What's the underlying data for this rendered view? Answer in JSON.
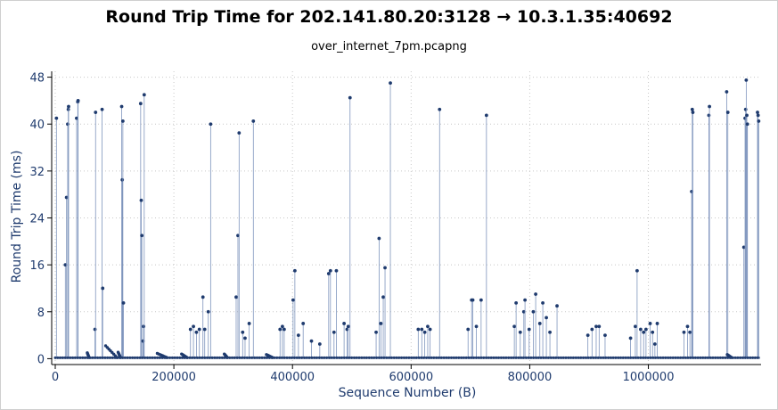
{
  "chart_data": {
    "type": "scatter",
    "title": "Round Trip Time for 202.141.80.20:3128 → 10.3.1.35:40692",
    "subtitle": "over_internet_7pm.pcapng",
    "xlabel": "Sequence Number (B)",
    "ylabel": "Round Trip Time (ms)",
    "xlim": [
      -6000,
      1190000
    ],
    "ylim": [
      -1,
      49
    ],
    "xticks": [
      0,
      200000,
      400000,
      600000,
      800000,
      1000000
    ],
    "yticks": [
      0,
      8,
      16,
      24,
      32,
      40,
      48
    ],
    "grid": true,
    "marker_color": "#1f3b6e",
    "line_color": "#7f95bd",
    "spikes": [
      [
        2000,
        41
      ],
      [
        17000,
        16
      ],
      [
        19000,
        27.5
      ],
      [
        21000,
        40
      ],
      [
        22000,
        42.5
      ],
      [
        22500,
        43
      ],
      [
        36000,
        41
      ],
      [
        38000,
        43.8
      ],
      [
        38500,
        44
      ],
      [
        67000,
        5
      ],
      [
        68000,
        42
      ],
      [
        79000,
        42.5
      ],
      [
        80000,
        12
      ],
      [
        112000,
        43
      ],
      [
        113000,
        30.5
      ],
      [
        114000,
        40.5
      ],
      [
        115000,
        9.5
      ],
      [
        144000,
        43.5
      ],
      [
        145000,
        27
      ],
      [
        146000,
        21
      ],
      [
        148000,
        3
      ],
      [
        149000,
        5.5
      ],
      [
        150000,
        45
      ],
      [
        228000,
        5
      ],
      [
        233000,
        5.5
      ],
      [
        238000,
        4.5
      ],
      [
        243000,
        5
      ],
      [
        249000,
        10.5
      ],
      [
        252000,
        5
      ],
      [
        258000,
        8
      ],
      [
        262000,
        40
      ],
      [
        305000,
        10.5
      ],
      [
        308000,
        21
      ],
      [
        310000,
        38.5
      ],
      [
        316000,
        4.5
      ],
      [
        320000,
        3.5
      ],
      [
        327000,
        6
      ],
      [
        334000,
        40.5
      ],
      [
        379000,
        5
      ],
      [
        383000,
        5.5
      ],
      [
        386000,
        5
      ],
      [
        401000,
        10
      ],
      [
        404000,
        15
      ],
      [
        410000,
        4
      ],
      [
        418000,
        6
      ],
      [
        432000,
        3
      ],
      [
        446000,
        2.5
      ],
      [
        461000,
        14.5
      ],
      [
        464000,
        15
      ],
      [
        470000,
        4.5
      ],
      [
        474000,
        15
      ],
      [
        487000,
        6
      ],
      [
        492000,
        5
      ],
      [
        494000,
        5.5
      ],
      [
        497000,
        44.5
      ],
      [
        541000,
        4.5
      ],
      [
        546000,
        20.5
      ],
      [
        549000,
        6
      ],
      [
        553000,
        10.5
      ],
      [
        556000,
        15.5
      ],
      [
        565000,
        47
      ],
      [
        612000,
        5
      ],
      [
        618000,
        5
      ],
      [
        623000,
        4.5
      ],
      [
        628000,
        5.5
      ],
      [
        632000,
        5
      ],
      [
        648000,
        42.5
      ],
      [
        696000,
        5
      ],
      [
        702000,
        10
      ],
      [
        704000,
        10
      ],
      [
        710000,
        5.5
      ],
      [
        718000,
        10
      ],
      [
        727000,
        41.5
      ],
      [
        774000,
        5.5
      ],
      [
        777000,
        9.5
      ],
      [
        784000,
        4.5
      ],
      [
        790000,
        8
      ],
      [
        792000,
        10
      ],
      [
        799000,
        5
      ],
      [
        806000,
        8
      ],
      [
        810000,
        11
      ],
      [
        817000,
        6
      ],
      [
        822000,
        9.5
      ],
      [
        828000,
        7
      ],
      [
        834000,
        4.5
      ],
      [
        846000,
        9
      ],
      [
        898000,
        4
      ],
      [
        905000,
        5
      ],
      [
        912000,
        5.5
      ],
      [
        917000,
        5.5
      ],
      [
        927000,
        4
      ],
      [
        970000,
        3.5
      ],
      [
        978000,
        5.5
      ],
      [
        981000,
        15
      ],
      [
        987000,
        5
      ],
      [
        992000,
        4.5
      ],
      [
        996000,
        5
      ],
      [
        1003000,
        6
      ],
      [
        1007000,
        4.5
      ],
      [
        1011000,
        2.5
      ],
      [
        1015000,
        6
      ],
      [
        1060000,
        4.5
      ],
      [
        1066000,
        5.5
      ],
      [
        1070000,
        4.5
      ],
      [
        1073000,
        28.5
      ],
      [
        1074000,
        42.5
      ],
      [
        1075000,
        42
      ],
      [
        1102000,
        41.5
      ],
      [
        1103000,
        43
      ],
      [
        1132000,
        45.5
      ],
      [
        1134000,
        42
      ],
      [
        1161000,
        19
      ],
      [
        1163000,
        41
      ],
      [
        1164000,
        42.5
      ],
      [
        1165000,
        47.5
      ],
      [
        1166000,
        41.5
      ],
      [
        1167000,
        40
      ],
      [
        1184000,
        42
      ],
      [
        1185000,
        41.5
      ],
      [
        1186000,
        40.5
      ]
    ],
    "baseline_clusters": [
      [
        54000,
        57000,
        0.8
      ],
      [
        85000,
        104000,
        2.0
      ],
      [
        106000,
        110000,
        0.9
      ],
      [
        172000,
        188000,
        0.7
      ],
      [
        213000,
        222000,
        0.6
      ],
      [
        285000,
        290000,
        0.6
      ],
      [
        356000,
        366000,
        0.5
      ],
      [
        1133000,
        1140000,
        0.5
      ]
    ]
  }
}
